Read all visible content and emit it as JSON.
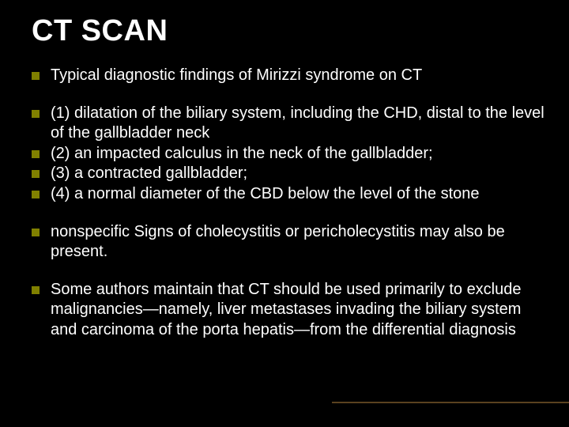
{
  "slide": {
    "title": "CT SCAN",
    "background_color": "#000000",
    "text_color": "#ffffff",
    "title_fontsize": 38,
    "body_fontsize": 20,
    "bullet_marker_color": "#808000",
    "footer_line_color": "#6a4d24",
    "groups": [
      [
        "Typical diagnostic findings of Mirizzi syndrome on CT"
      ],
      [
        "(1) dilatation of the biliary system, including the CHD, distal to the level of the gallbladder neck",
        "(2) an impacted calculus in the neck of the gallbladder;",
        "(3) a contracted gallbladder;",
        "(4) a normal diameter of the CBD below the level of the stone"
      ],
      [
        "nonspecific Signs of cholecystitis or pericholecystitis may also be present."
      ],
      [
        "Some authors maintain that CT should be used primarily to exclude malignancies—namely, liver metastases invading the biliary system and carcinoma of the porta hepatis—from the differential diagnosis"
      ]
    ]
  }
}
